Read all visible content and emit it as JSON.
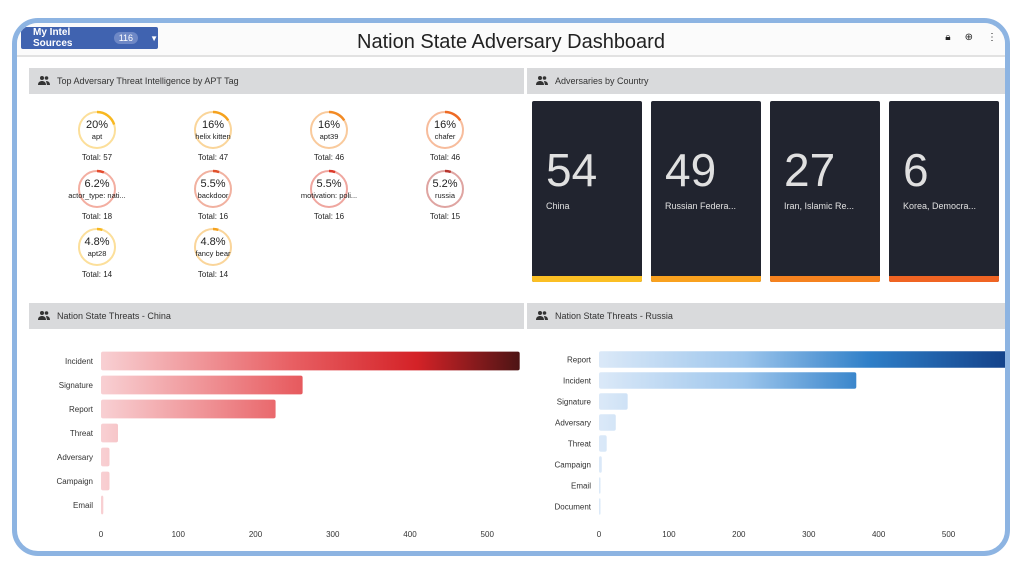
{
  "header": {
    "sources_label": "My Intel Sources",
    "sources_count": "116",
    "title": "Nation State Adversary Dashboard",
    "icons": [
      "lock-icon",
      "add-circle-icon",
      "more-icon"
    ]
  },
  "apt_panel": {
    "title": "Top Adversary Threat Intelligence by APT Tag",
    "items": [
      {
        "pct": "20%",
        "label": "apt",
        "total": "Total: 57",
        "value": 20,
        "color": "#f8b820"
      },
      {
        "pct": "16%",
        "label": "helix kitten",
        "total": "Total: 47",
        "value": 16,
        "color": "#f5a21e"
      },
      {
        "pct": "16%",
        "label": "apt39",
        "total": "Total: 46",
        "value": 16,
        "color": "#f28a24"
      },
      {
        "pct": "16%",
        "label": "chafer",
        "total": "Total: 46",
        "value": 16,
        "color": "#ee6a24"
      },
      {
        "pct": "6.2%",
        "label": "actor_type: nati...",
        "total": "Total: 18",
        "value": 6.2,
        "color": "#e44b2e"
      },
      {
        "pct": "5.5%",
        "label": "backdoor",
        "total": "Total: 16",
        "value": 5.5,
        "color": "#e0512c"
      },
      {
        "pct": "5.5%",
        "label": "motivation: poli...",
        "total": "Total: 16",
        "value": 5.5,
        "color": "#dc3a2a"
      },
      {
        "pct": "5.2%",
        "label": "russia",
        "total": "Total: 15",
        "value": 5.2,
        "color": "#b8362e"
      },
      {
        "pct": "4.8%",
        "label": "apt28",
        "total": "Total: 14",
        "value": 4.8,
        "color": "#f8b820"
      },
      {
        "pct": "4.8%",
        "label": "fancy bear",
        "total": "Total: 14",
        "value": 4.8,
        "color": "#f5a21e"
      }
    ]
  },
  "country_panel": {
    "title": "Adversaries by Country",
    "cards": [
      {
        "value": "54",
        "country": "China",
        "color": "#fbbf24"
      },
      {
        "value": "49",
        "country": "Russian Federa...",
        "color": "#f9a11f"
      },
      {
        "value": "27",
        "country": "Iran, Islamic Re...",
        "color": "#f5821f"
      },
      {
        "value": "6",
        "country": "Korea, Democra...",
        "color": "#f06423"
      }
    ]
  },
  "chart_data": [
    {
      "type": "bar",
      "orientation": "horizontal",
      "title": "Nation State Threats - China",
      "categories": [
        "Incident",
        "Signature",
        "Report",
        "Threat",
        "Adversary",
        "Campaign",
        "Email"
      ],
      "values": [
        542,
        261,
        226,
        22,
        11,
        11,
        3
      ],
      "xlim": [
        0,
        545
      ],
      "xticks": [
        0,
        100,
        200,
        300,
        400,
        500
      ],
      "colors": [
        "#f8d0d3",
        "#e86064",
        "#d42227",
        "#4a1414"
      ]
    },
    {
      "type": "bar",
      "orientation": "horizontal",
      "title": "Nation State Threats - Russia",
      "categories": [
        "Report",
        "Incident",
        "Signature",
        "Adversary",
        "Threat",
        "Campaign",
        "Email",
        "Document"
      ],
      "values": [
        595,
        368,
        41,
        24,
        11,
        4,
        1,
        1
      ],
      "xlim": [
        0,
        595
      ],
      "xticks": [
        0,
        100,
        200,
        300,
        400,
        500
      ],
      "colors": [
        "#dbe9f8",
        "#9cc5ec",
        "#2f7fc8",
        "#123e86"
      ]
    }
  ]
}
